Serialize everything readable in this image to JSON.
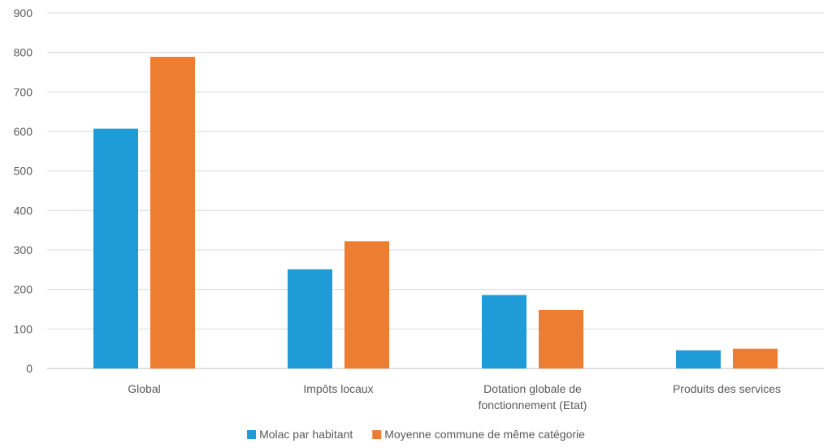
{
  "chart_data": {
    "type": "bar",
    "title": "",
    "xlabel": "",
    "ylabel": "",
    "ylim": [
      0,
      900
    ],
    "yticks": [
      0,
      100,
      200,
      300,
      400,
      500,
      600,
      700,
      800,
      900
    ],
    "grid": true,
    "legend_position": "bottom",
    "categories": [
      [
        "Global"
      ],
      [
        "Impôts locaux"
      ],
      [
        "Dotation globale de",
        "fonctionnement (Etat)"
      ],
      [
        "Produits des services"
      ]
    ],
    "series": [
      {
        "name": "Molac par habitant",
        "color": "#1f9bd7",
        "values": [
          607,
          251,
          186,
          46
        ]
      },
      {
        "name": "Moyenne commune de même catégorie",
        "color": "#ed7d31",
        "values": [
          789,
          322,
          148,
          50
        ]
      }
    ]
  }
}
